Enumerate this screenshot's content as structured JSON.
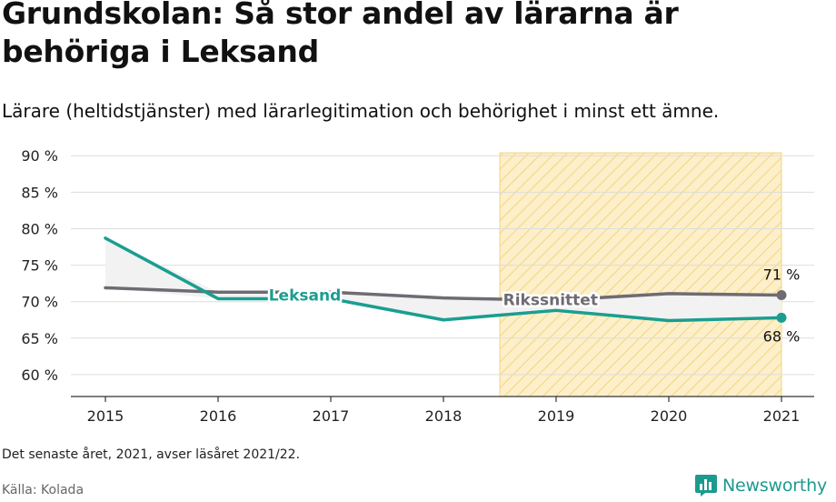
{
  "title": "Grundskolan: Så stor andel av lärarna är behöriga i Leksand",
  "subtitle": "Lärare (heltidstjänster) med lärarlegitimation och behörighet i minst ett ämne.",
  "footnote": "Det senaste året, 2021, avser läsåret 2021/22.",
  "source": "Källa: Kolada",
  "brand": "Newsworthy",
  "colors": {
    "leksand": "#1a9e90",
    "riket": "#6e6b72",
    "highlight_fill": "#fcefc9",
    "highlight_hatch": "#f5d57c",
    "grid": "#dddddd",
    "gap_fill": "#f2f2f2",
    "brand": "#1d9a8f"
  },
  "chart_data": {
    "type": "line",
    "x": [
      "2015",
      "2016",
      "2017",
      "2018",
      "2019",
      "2020",
      "2021"
    ],
    "series": [
      {
        "name": "Leksand",
        "values": [
          78.7,
          70.4,
          70.4,
          67.5,
          68.8,
          67.4,
          67.8
        ]
      },
      {
        "name": "Rikssnittet",
        "values": [
          71.9,
          71.3,
          71.3,
          70.5,
          70.2,
          71.1,
          70.9
        ]
      }
    ],
    "yticks": [
      60,
      65,
      70,
      75,
      80,
      85,
      90
    ],
    "ytick_labels": [
      "60 %",
      "65 %",
      "70 %",
      "75 %",
      "80 %",
      "85 %",
      "90 %"
    ],
    "ylim": [
      57,
      90.4
    ],
    "highlight_range": [
      "2018.5",
      "2021"
    ],
    "end_labels": {
      "Rikssnittet": "71 %",
      "Leksand": "68 %"
    },
    "grid": true
  }
}
